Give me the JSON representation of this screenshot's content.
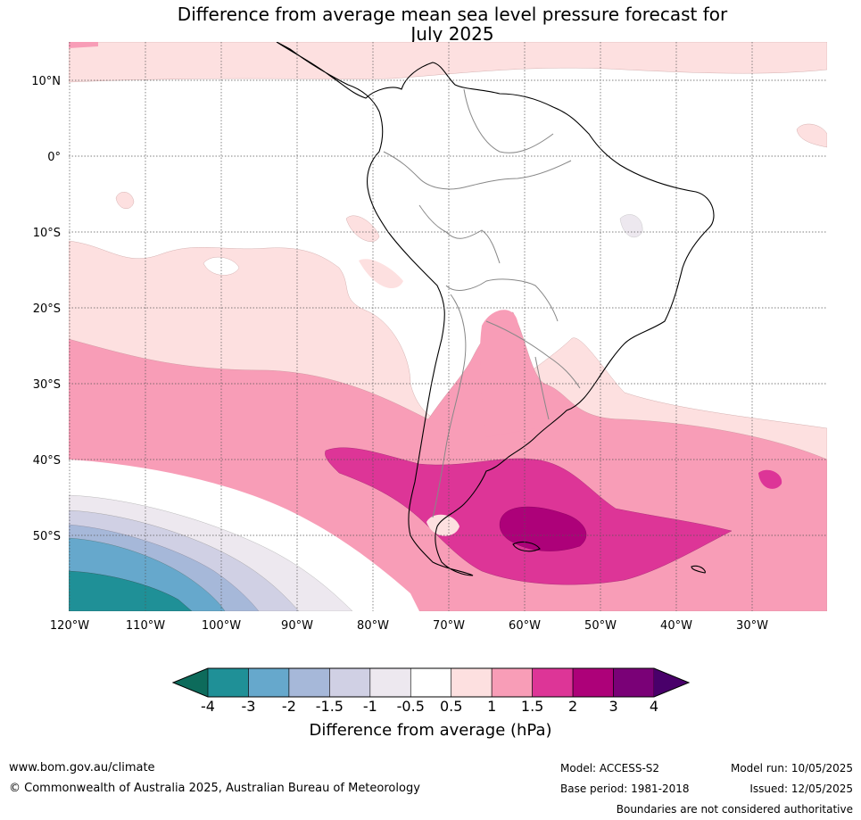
{
  "title_line1": "Difference from average mean sea level pressure forecast for",
  "title_line2": "July 2025",
  "map": {
    "lat_labels": [
      "10°N",
      "0°",
      "10°S",
      "20°S",
      "30°S",
      "40°S",
      "50°S"
    ],
    "lon_labels": [
      "120°W",
      "110°W",
      "100°W",
      "90°W",
      "80°W",
      "70°W",
      "60°W",
      "50°W",
      "40°W",
      "30°W"
    ]
  },
  "colorbar": {
    "title": "Difference from average (hPa)",
    "tick_labels": [
      "-4",
      "-3",
      "-2",
      "-1.5",
      "-1",
      "-0.5",
      "0.5",
      "1",
      "1.5",
      "2",
      "3",
      "4"
    ],
    "colors": [
      "#0d6b5b",
      "#1f9097",
      "#66a8cc",
      "#a6b8d9",
      "#d0d0e4",
      "#ede8ef",
      "#ffffff",
      "#fde0e0",
      "#f89db7",
      "#dd3597",
      "#ad0179",
      "#7a0177",
      "#49006a"
    ]
  },
  "footer": {
    "website": "www.bom.gov.au/climate",
    "copyright": "© Commonwealth of Australia 2025, Australian Bureau of Meteorology",
    "model": "Model: ACCESS-S2",
    "base_period": "Base period: 1981-2018",
    "model_run": "Model run: 10/05/2025",
    "issued": "Issued: 12/05/2025",
    "disclaimer": "Boundaries are not considered authoritative"
  }
}
